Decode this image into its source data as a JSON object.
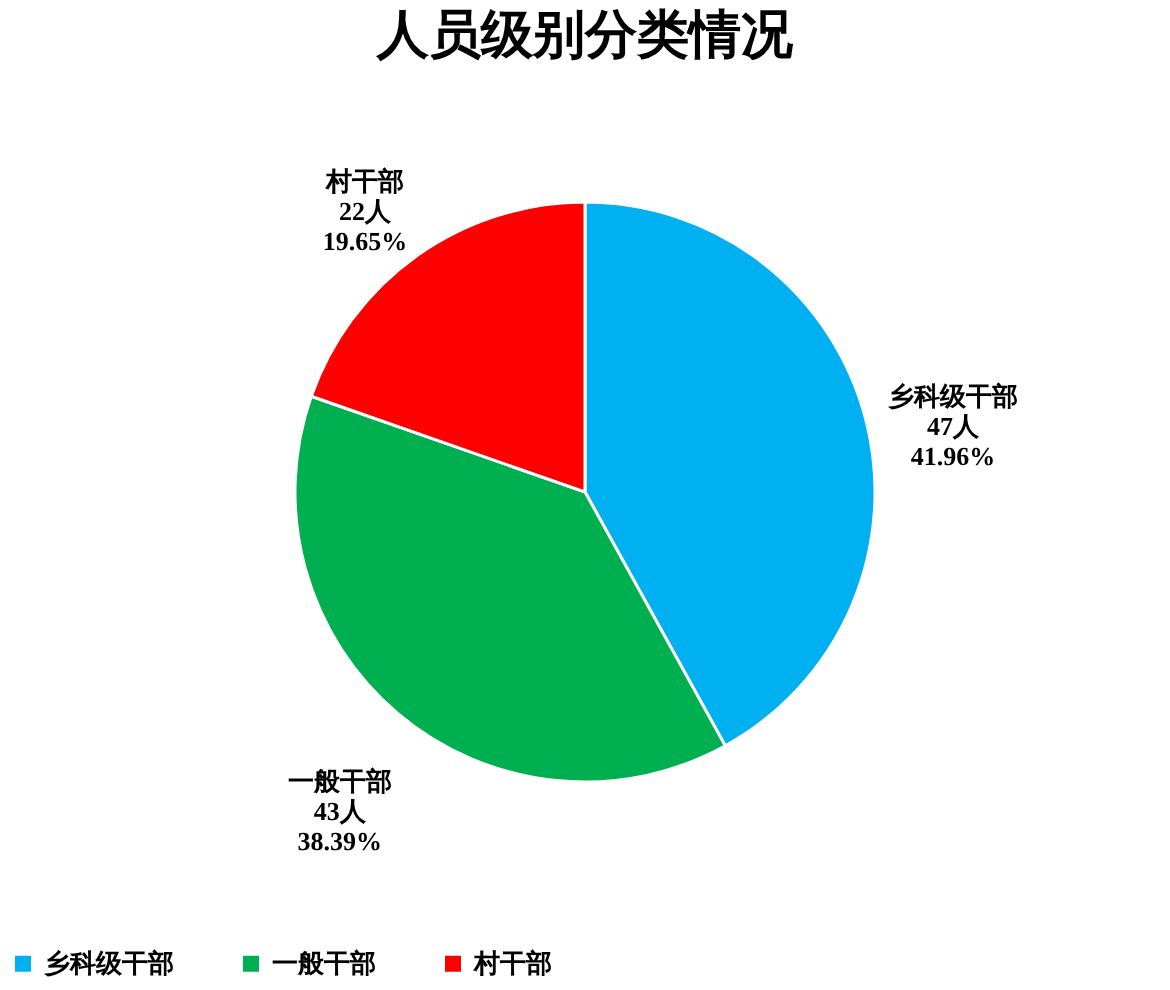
{
  "chart_data": {
    "type": "pie",
    "title": "人员级别分类情况",
    "categories": [
      "乡科级干部",
      "一般干部",
      "村干部"
    ],
    "values": [
      47,
      43,
      22
    ],
    "colors": [
      "#00b0f0",
      "#00b050",
      "#ff0000"
    ],
    "value_labels": [
      "47人\n41.96%",
      "43人\n38.39%",
      "22人\n19.65%"
    ],
    "legend": "bottom"
  }
}
